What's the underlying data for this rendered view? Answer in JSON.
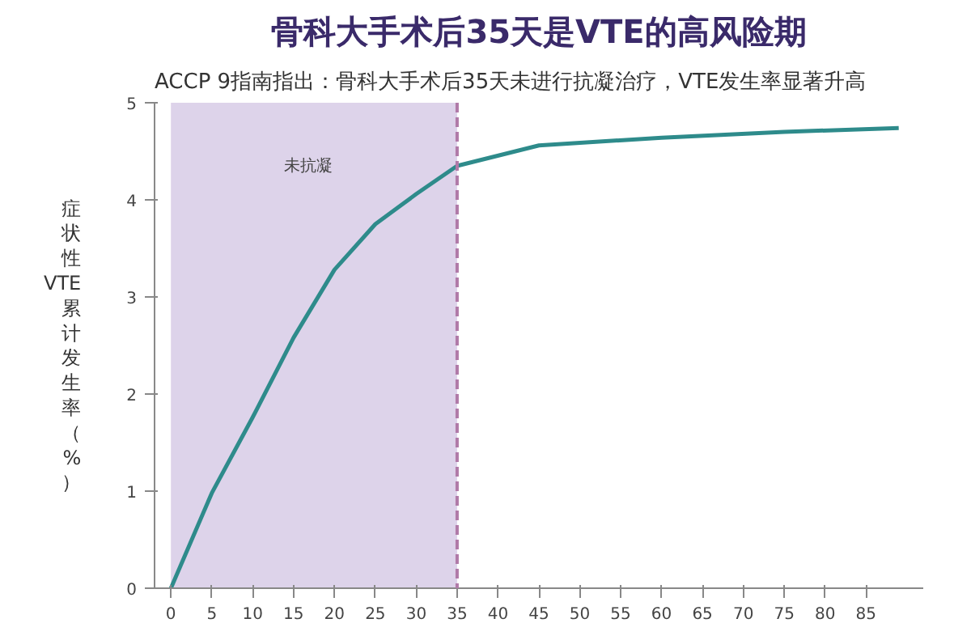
{
  "chart_data": {
    "type": "line",
    "title": "骨科大手术后35天是VTE的高风险期",
    "subtitle": "ACCP 9指南指出：骨科大手术后35天未进行抗凝治疗，VTE发生率显著升高",
    "ylabel": "症状性VTE累计发生率（%）",
    "x": [
      0,
      5,
      10,
      15,
      20,
      25,
      30,
      35,
      45,
      60,
      75,
      89
    ],
    "series": [
      {
        "color": "#2e8b8b",
        "values": [
          0,
          0.98,
          1.76,
          2.58,
          3.28,
          3.75,
          4.06,
          4.35,
          4.56,
          4.64,
          4.7,
          4.74
        ]
      }
    ],
    "xlim": [
      -2,
      92
    ],
    "xticks": [
      0,
      5,
      10,
      15,
      20,
      25,
      30,
      35,
      40,
      45,
      50,
      55,
      60,
      65,
      70,
      75,
      80,
      85
    ],
    "ylim": [
      0,
      5
    ],
    "yticks": [
      0,
      1,
      2,
      3,
      4,
      5
    ],
    "bands": [
      {
        "axis": "x",
        "from": 0,
        "to": 35,
        "color": "#ddd3ea"
      }
    ],
    "ref_lines": [
      {
        "axis": "x",
        "value": 35,
        "color": "#b07aa8",
        "line_style": "dashed"
      }
    ],
    "annotations": [
      "未抗凝"
    ],
    "grid": false,
    "marker": "none",
    "line_style": "solid"
  }
}
